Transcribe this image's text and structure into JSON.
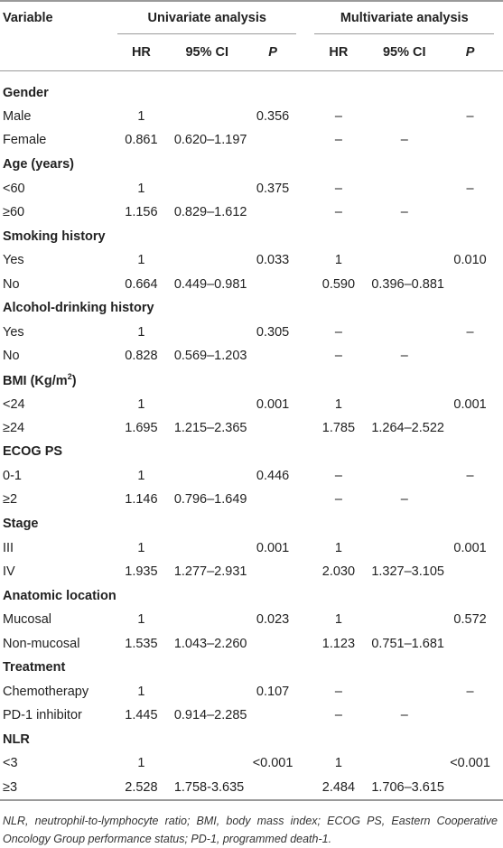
{
  "header": {
    "variable": "Variable",
    "univariate": "Univariate analysis",
    "multivariate": "Multivariate analysis",
    "hr": "HR",
    "ci": "95% CI",
    "p": "P"
  },
  "sections": [
    {
      "title": "Gender",
      "rows": [
        {
          "label": "Male",
          "hr1": "1",
          "ci1": "",
          "p1": "0.356",
          "hr2": "–",
          "ci2": "",
          "p2": "–"
        },
        {
          "label": "Female",
          "hr1": "0.861",
          "ci1": "0.620–1.197",
          "p1": "",
          "hr2": "–",
          "ci2": "–",
          "p2": ""
        }
      ]
    },
    {
      "title": "Age (years)",
      "rows": [
        {
          "label": "<60",
          "hr1": "1",
          "ci1": "",
          "p1": "0.375",
          "hr2": "–",
          "ci2": "",
          "p2": "–"
        },
        {
          "label": "≥60",
          "hr1": "1.156",
          "ci1": "0.829–1.612",
          "p1": "",
          "hr2": "–",
          "ci2": "–",
          "p2": ""
        }
      ]
    },
    {
      "title": "Smoking history",
      "rows": [
        {
          "label": "Yes",
          "hr1": "1",
          "ci1": "",
          "p1": "0.033",
          "hr2": "1",
          "ci2": "",
          "p2": "0.010"
        },
        {
          "label": "No",
          "hr1": "0.664",
          "ci1": "0.449–0.981",
          "p1": "",
          "hr2": "0.590",
          "ci2": "0.396–0.881",
          "p2": ""
        }
      ]
    },
    {
      "title": "Alcohol-drinking history",
      "rows": [
        {
          "label": "Yes",
          "hr1": "1",
          "ci1": "",
          "p1": "0.305",
          "hr2": "–",
          "ci2": "",
          "p2": "–"
        },
        {
          "label": "No",
          "hr1": "0.828",
          "ci1": "0.569–1.203",
          "p1": "",
          "hr2": "–",
          "ci2": "–",
          "p2": ""
        }
      ]
    },
    {
      "title": "BMI (Kg/m",
      "title_sup": "2",
      "title_end": ")",
      "rows": [
        {
          "label": "<24",
          "hr1": "1",
          "ci1": "",
          "p1": "0.001",
          "hr2": "1",
          "ci2": "",
          "p2": "0.001"
        },
        {
          "label": "≥24",
          "hr1": "1.695",
          "ci1": "1.215–2.365",
          "p1": "",
          "hr2": "1.785",
          "ci2": "1.264–2.522",
          "p2": ""
        }
      ]
    },
    {
      "title": "ECOG PS",
      "rows": [
        {
          "label": "0-1",
          "hr1": "1",
          "ci1": "",
          "p1": "0.446",
          "hr2": "–",
          "ci2": "",
          "p2": "–"
        },
        {
          "label": "≥2",
          "hr1": "1.146",
          "ci1": "0.796–1.649",
          "p1": "",
          "hr2": "–",
          "ci2": "–",
          "p2": ""
        }
      ]
    },
    {
      "title": "Stage",
      "rows": [
        {
          "label": "III",
          "hr1": "1",
          "ci1": "",
          "p1": "0.001",
          "hr2": "1",
          "ci2": "",
          "p2": "0.001"
        },
        {
          "label": "IV",
          "hr1": "1.935",
          "ci1": "1.277–2.931",
          "p1": "",
          "hr2": "2.030",
          "ci2": "1.327–3.105",
          "p2": ""
        }
      ]
    },
    {
      "title": "Anatomic location",
      "rows": [
        {
          "label": "Mucosal",
          "hr1": "1",
          "ci1": "",
          "p1": "0.023",
          "hr2": "1",
          "ci2": "",
          "p2": "0.572"
        },
        {
          "label": "Non-mucosal",
          "hr1": "1.535",
          "ci1": "1.043–2.260",
          "p1": "",
          "hr2": "1.123",
          "ci2": "0.751–1.681",
          "p2": ""
        }
      ]
    },
    {
      "title": "Treatment",
      "rows": [
        {
          "label": "Chemotherapy",
          "hr1": "1",
          "ci1": "",
          "p1": "0.107",
          "hr2": "–",
          "ci2": "",
          "p2": "–"
        },
        {
          "label": "PD-1 inhibitor",
          "hr1": "1.445",
          "ci1": "0.914–2.285",
          "p1": "",
          "hr2": "–",
          "ci2": "–",
          "p2": ""
        }
      ]
    },
    {
      "title": "NLR",
      "rows": [
        {
          "label": "<3",
          "hr1": "1",
          "ci1": "",
          "p1": "<0.001",
          "hr2": "1",
          "ci2": "",
          "p2": "<0.001"
        },
        {
          "label": "≥3",
          "hr1": "2.528",
          "ci1": "1.758-3.635",
          "p1": "",
          "hr2": "2.484",
          "ci2": "1.706–3.615",
          "p2": ""
        }
      ]
    }
  ],
  "footnote": "NLR, neutrophil-to-lymphocyte ratio; BMI, body mass index; ECOG PS, Eastern Cooperative Oncology Group performance status; PD-1, programmed death-1."
}
